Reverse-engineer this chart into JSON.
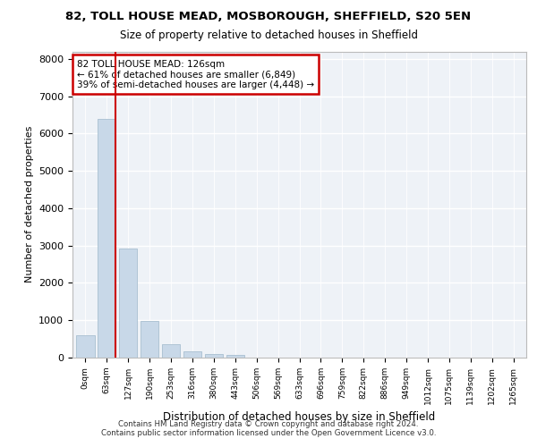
{
  "title_line1": "82, TOLL HOUSE MEAD, MOSBOROUGH, SHEFFIELD, S20 5EN",
  "title_line2": "Size of property relative to detached houses in Sheffield",
  "xlabel": "Distribution of detached houses by size in Sheffield",
  "ylabel": "Number of detached properties",
  "footer_line1": "Contains HM Land Registry data © Crown copyright and database right 2024.",
  "footer_line2": "Contains public sector information licensed under the Open Government Licence v3.0.",
  "bin_labels": [
    "0sqm",
    "63sqm",
    "127sqm",
    "190sqm",
    "253sqm",
    "316sqm",
    "380sqm",
    "443sqm",
    "506sqm",
    "569sqm",
    "633sqm",
    "696sqm",
    "759sqm",
    "822sqm",
    "886sqm",
    "949sqm",
    "1012sqm",
    "1075sqm",
    "1139sqm",
    "1202sqm"
  ],
  "bar_values": [
    600,
    6400,
    2920,
    980,
    360,
    160,
    95,
    60,
    0,
    0,
    0,
    0,
    0,
    0,
    0,
    0,
    0,
    0,
    0,
    0
  ],
  "property_bin_index": 1,
  "annotation_text": "82 TOLL HOUSE MEAD: 126sqm\n← 61% of detached houses are smaller (6,849)\n39% of semi-detached houses are larger (4,448) →",
  "bar_color": "#c8d8e8",
  "bar_edge_color": "#a8bfd0",
  "marker_line_color": "#cc0000",
  "annotation_box_color": "#cc0000",
  "background_color": "#eef2f7",
  "ylim": [
    0,
    8200
  ],
  "yticks": [
    0,
    1000,
    2000,
    3000,
    4000,
    5000,
    6000,
    7000,
    8000
  ]
}
